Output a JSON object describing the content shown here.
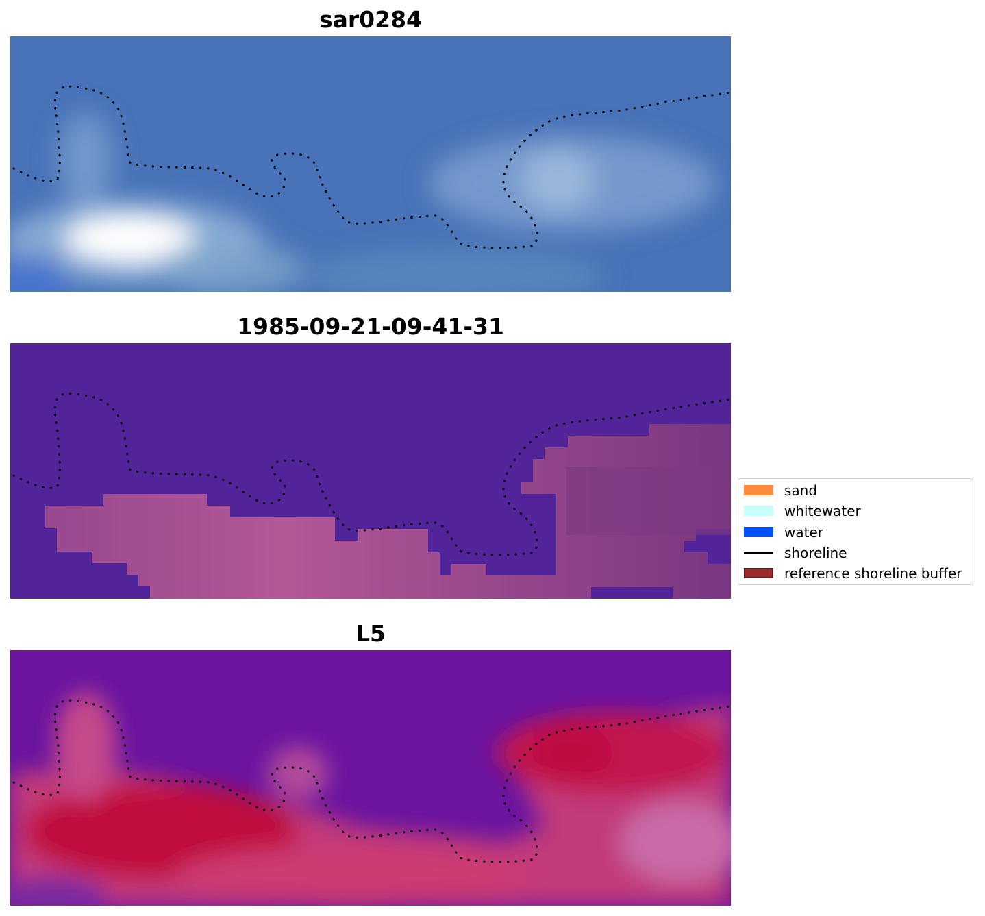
{
  "panels": [
    {
      "id": "sar",
      "title": "sar0284"
    },
    {
      "id": "date",
      "title": "1985-09-21-09-41-31"
    },
    {
      "id": "l5",
      "title": "L5"
    }
  ],
  "legend": {
    "items": [
      {
        "label": "sand",
        "color": "#ff8c3c",
        "kind": "patch"
      },
      {
        "label": "whitewater",
        "color": "#c8fffc",
        "kind": "patch"
      },
      {
        "label": "water",
        "color": "#0050ff",
        "kind": "patch"
      },
      {
        "label": "shoreline",
        "color": "#000000",
        "kind": "line"
      },
      {
        "label": "reference shoreline buffer",
        "color": "#9b2a2a",
        "kind": "patch"
      }
    ]
  },
  "colors": {
    "sar_water": "#4a72b6",
    "sar_bright": "#ffffff",
    "classified_water": "#522499",
    "classified_land": "#7b3a84",
    "l5_water": "#6a14a0",
    "l5_land": "#c0144a",
    "shoreline": "#000000"
  }
}
